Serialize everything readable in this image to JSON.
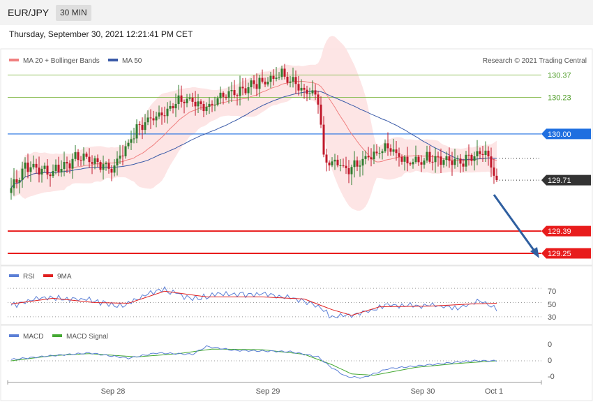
{
  "header": {
    "symbol": "EUR/JPY",
    "timeframe": "30 MIN",
    "timestamp": "Thursday, September 30, 2021 12:21:41 PM CET"
  },
  "legend": {
    "ma20": "MA 20 + Bollinger Bands",
    "ma50": "MA 50",
    "credit": "Research © 2021 Trading Central"
  },
  "colors": {
    "ma20": "#f08080",
    "ma50": "#3a5aa8",
    "band": "#fde0e0",
    "bull": "#2f7d2f",
    "bear": "#c0182a",
    "resistance": "#8fbf5a",
    "pivot": "#1f6fe0",
    "support": "#e81c1c",
    "arrow": "#2f5fa0",
    "rsi": "#5b7fd6",
    "rsi_ma": "#e02020",
    "macd": "#5b7fd6",
    "macd_signal": "#44a832"
  },
  "chart_data": [
    {
      "type": "candlestick",
      "title": "EUR/JPY 30 MIN",
      "x_ticks": [
        "Sep 28",
        "Sep 29",
        "Sep 30",
        "Oct 1"
      ],
      "ylim": [
        129.18,
        130.53
      ],
      "series": [
        {
          "name": "MA 20 + Bollinger Bands",
          "kind": "line"
        },
        {
          "name": "MA 50",
          "kind": "line"
        }
      ],
      "levels": [
        {
          "label": "130.37",
          "value": 130.37,
          "kind": "resistance",
          "tag": false
        },
        {
          "label": "130.23",
          "value": 130.23,
          "kind": "resistance",
          "tag": false
        },
        {
          "label": "130.00",
          "value": 130.0,
          "kind": "pivot",
          "tag": true
        },
        {
          "label": "129.71",
          "value": 129.71,
          "kind": "last",
          "tag": true
        },
        {
          "label": "129.39",
          "value": 129.39,
          "kind": "support",
          "tag": true
        },
        {
          "label": "129.25",
          "value": 129.25,
          "kind": "support",
          "tag": true
        }
      ],
      "anchors": [
        {
          "i": 0,
          "p": 129.66
        },
        {
          "i": 5,
          "p": 129.8
        },
        {
          "i": 14,
          "p": 129.76
        },
        {
          "i": 25,
          "p": 129.86
        },
        {
          "i": 36,
          "p": 129.78
        },
        {
          "i": 46,
          "p": 130.05
        },
        {
          "i": 62,
          "p": 130.22
        },
        {
          "i": 70,
          "p": 130.17
        },
        {
          "i": 82,
          "p": 130.28
        },
        {
          "i": 97,
          "p": 130.37
        },
        {
          "i": 110,
          "p": 130.22
        },
        {
          "i": 112,
          "p": 129.86
        },
        {
          "i": 120,
          "p": 129.78
        },
        {
          "i": 135,
          "p": 129.93
        },
        {
          "i": 142,
          "p": 129.81
        },
        {
          "i": 151,
          "p": 129.86
        },
        {
          "i": 160,
          "p": 129.82
        },
        {
          "i": 170,
          "p": 129.88
        },
        {
          "i": 174,
          "p": 129.71
        }
      ],
      "candle_count": 175
    },
    {
      "type": "line",
      "title": "RSI",
      "series": [
        {
          "name": "RSI"
        },
        {
          "name": "9MA"
        }
      ],
      "y_ticks": [
        "70",
        "50",
        "30"
      ],
      "levels": [
        70,
        50,
        30
      ],
      "ylim": [
        22,
        78
      ],
      "rsi_anchors": [
        {
          "i": 0,
          "v": 45
        },
        {
          "i": 10,
          "v": 58
        },
        {
          "i": 25,
          "v": 55
        },
        {
          "i": 40,
          "v": 45
        },
        {
          "i": 50,
          "v": 63
        },
        {
          "i": 55,
          "v": 68
        },
        {
          "i": 65,
          "v": 55
        },
        {
          "i": 75,
          "v": 62
        },
        {
          "i": 90,
          "v": 62
        },
        {
          "i": 100,
          "v": 58
        },
        {
          "i": 110,
          "v": 45
        },
        {
          "i": 115,
          "v": 30
        },
        {
          "i": 125,
          "v": 34
        },
        {
          "i": 135,
          "v": 46
        },
        {
          "i": 150,
          "v": 46
        },
        {
          "i": 160,
          "v": 42
        },
        {
          "i": 168,
          "v": 52
        },
        {
          "i": 174,
          "v": 42
        }
      ],
      "ma_anchors": [
        {
          "i": 0,
          "v": 48
        },
        {
          "i": 15,
          "v": 56
        },
        {
          "i": 30,
          "v": 50
        },
        {
          "i": 42,
          "v": 49
        },
        {
          "i": 55,
          "v": 66
        },
        {
          "i": 70,
          "v": 58
        },
        {
          "i": 90,
          "v": 58
        },
        {
          "i": 105,
          "v": 55
        },
        {
          "i": 115,
          "v": 40
        },
        {
          "i": 122,
          "v": 32
        },
        {
          "i": 132,
          "v": 44
        },
        {
          "i": 150,
          "v": 45
        },
        {
          "i": 165,
          "v": 48
        },
        {
          "i": 174,
          "v": 49
        }
      ]
    },
    {
      "type": "line",
      "title": "MACD",
      "series": [
        {
          "name": "MACD"
        },
        {
          "name": "MACD Signal"
        }
      ],
      "y_ticks": [
        "0",
        "0",
        "-0"
      ],
      "ylim": [
        -0.16,
        0.16
      ],
      "macd_anchors": [
        {
          "i": 0,
          "v": 0.01
        },
        {
          "i": 15,
          "v": 0.04
        },
        {
          "i": 28,
          "v": 0.06
        },
        {
          "i": 42,
          "v": 0.02
        },
        {
          "i": 52,
          "v": 0.06
        },
        {
          "i": 65,
          "v": 0.05
        },
        {
          "i": 70,
          "v": 0.11
        },
        {
          "i": 80,
          "v": 0.08
        },
        {
          "i": 100,
          "v": 0.07
        },
        {
          "i": 110,
          "v": 0.03
        },
        {
          "i": 114,
          "v": -0.04
        },
        {
          "i": 120,
          "v": -0.12
        },
        {
          "i": 126,
          "v": -0.13
        },
        {
          "i": 135,
          "v": -0.06
        },
        {
          "i": 150,
          "v": -0.03
        },
        {
          "i": 165,
          "v": 0.0
        },
        {
          "i": 174,
          "v": 0.0
        }
      ],
      "signal_anchors": [
        {
          "i": 0,
          "v": 0.0
        },
        {
          "i": 15,
          "v": 0.04
        },
        {
          "i": 28,
          "v": 0.055
        },
        {
          "i": 45,
          "v": 0.03
        },
        {
          "i": 60,
          "v": 0.055
        },
        {
          "i": 72,
          "v": 0.09
        },
        {
          "i": 90,
          "v": 0.085
        },
        {
          "i": 105,
          "v": 0.05
        },
        {
          "i": 115,
          "v": -0.03
        },
        {
          "i": 122,
          "v": -0.1
        },
        {
          "i": 130,
          "v": -0.11
        },
        {
          "i": 145,
          "v": -0.05
        },
        {
          "i": 160,
          "v": -0.02
        },
        {
          "i": 174,
          "v": 0.0
        }
      ]
    }
  ]
}
